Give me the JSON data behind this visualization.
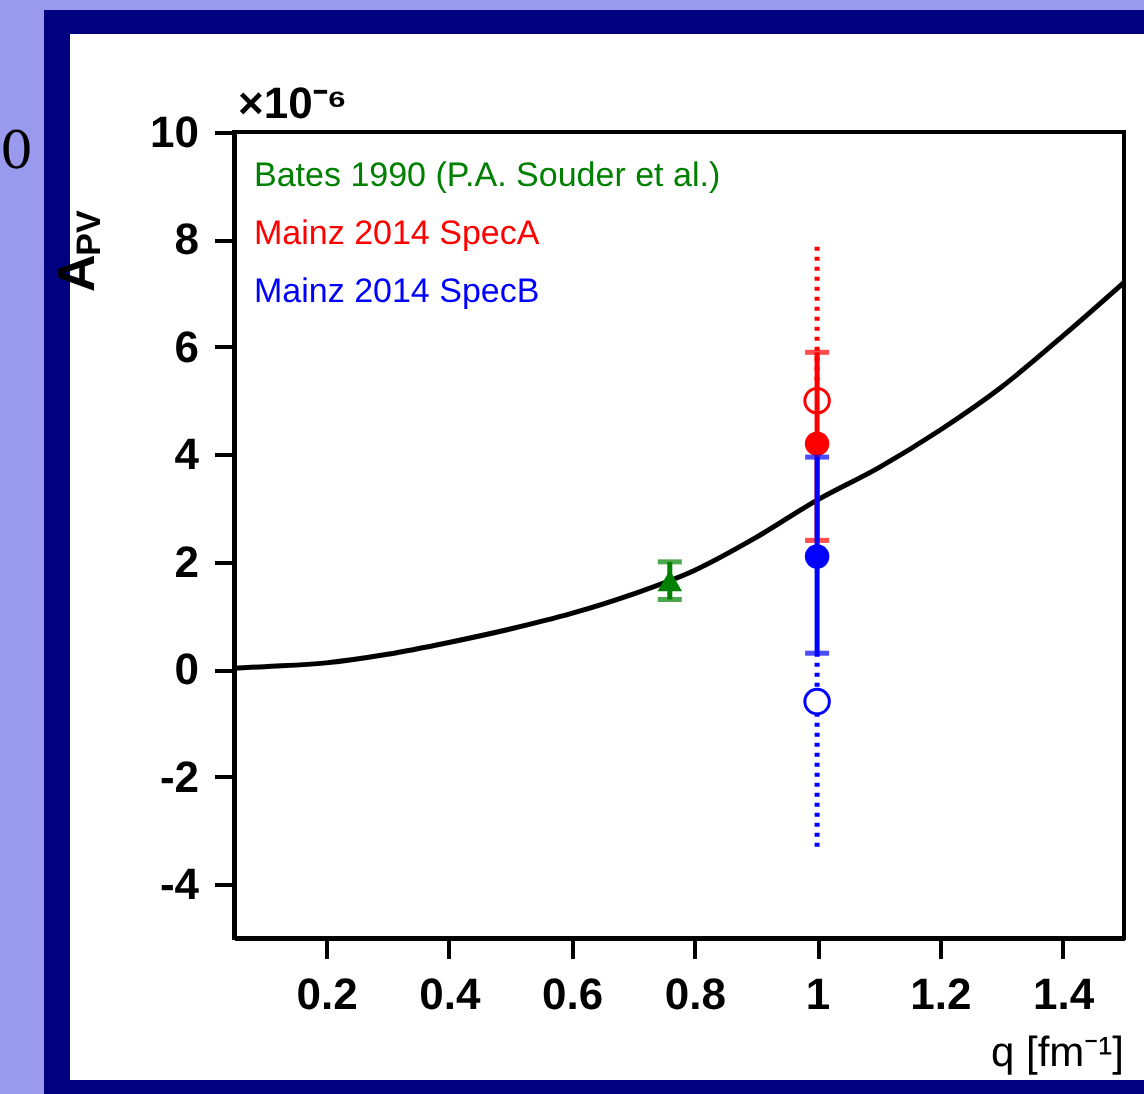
{
  "chart_data": {
    "type": "scatter",
    "xlabel": "q [fm⁻¹]",
    "ylabel": "A$_{PV}$",
    "xlim": [
      0.05,
      1.5
    ],
    "ylim": [
      -5,
      10
    ],
    "xticks": [
      0.2,
      0.4,
      0.6,
      0.8,
      1,
      1.2,
      1.4
    ],
    "yticks": [
      -4,
      -2,
      0,
      2,
      4,
      6,
      8,
      10
    ],
    "legend": "top left",
    "grid": false,
    "annotations": [
      "×10⁻⁶",
      "0"
    ],
    "series": [
      {
        "type": "line",
        "color": "#000000",
        "x": [
          0.05,
          0.1,
          0.2,
          0.3,
          0.4,
          0.5,
          0.6,
          0.7,
          0.8,
          0.9,
          1.0,
          1.1,
          1.2,
          1.3,
          1.4,
          1.5
        ],
        "values": [
          0.02,
          0.05,
          0.12,
          0.28,
          0.5,
          0.75,
          1.04,
          1.4,
          1.84,
          2.45,
          3.15,
          3.75,
          4.45,
          5.25,
          6.2,
          7.2
        ],
        "line_style": "solid",
        "marker": "none"
      },
      {
        "name": "Bates 1990 (P.A. Souder et al.)",
        "color": "#008000",
        "x": [
          0.76
        ],
        "values": [
          1.65
        ],
        "errors": [
          [
            1.3,
            2.0
          ]
        ],
        "marker": "triangle",
        "line_style": "solid"
      },
      {
        "color": "#ff0000",
        "x": [
          1.0
        ],
        "values": [
          5.0
        ],
        "errors": [
          [
            5.0,
            7.9
          ]
        ],
        "marker": "circle",
        "line_style": "dotted"
      },
      {
        "color": "#0000ff",
        "x": [
          1.0
        ],
        "values": [
          -0.6
        ],
        "errors": [
          [
            -3.3,
            0.3
          ]
        ],
        "marker": "circle",
        "line_style": "dotted"
      },
      {
        "name": "Mainz 2014 SpecA",
        "color": "#ff0000",
        "x": [
          1.0
        ],
        "values": [
          4.2
        ],
        "errors": [
          [
            2.4,
            5.9
          ]
        ],
        "marker": "circle",
        "line_style": "solid"
      },
      {
        "name": "Mainz 2014 SpecB",
        "color": "#0000ff",
        "x": [
          1.0
        ],
        "values": [
          2.1
        ],
        "errors": [
          [
            0.3,
            3.95
          ]
        ],
        "marker": "circle",
        "line_style": "solid"
      }
    ]
  }
}
